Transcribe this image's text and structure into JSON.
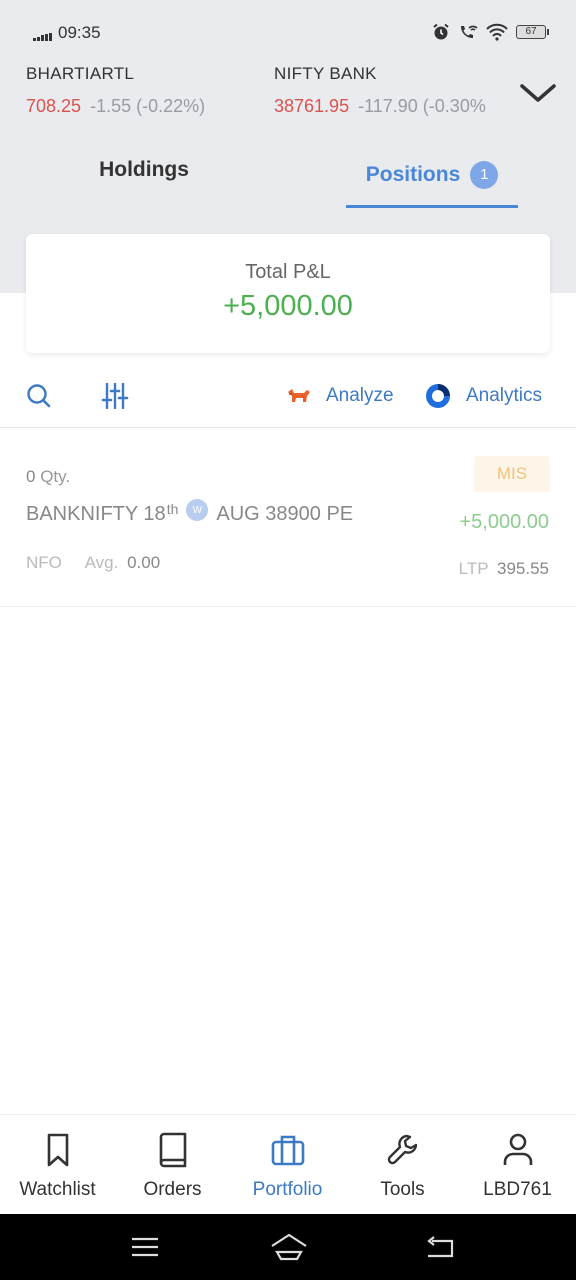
{
  "status_bar": {
    "time": "09:35",
    "battery": "67"
  },
  "tickers": [
    {
      "name": "BHARTIARTL",
      "price": "708.25",
      "change": "-1.55 (-0.22%)"
    },
    {
      "name": "NIFTY BANK",
      "price": "38761.95",
      "change": "-117.90 (-0.30%"
    }
  ],
  "tabs": {
    "holdings": "Holdings",
    "positions": "Positions",
    "positions_count": "1"
  },
  "pnl": {
    "label": "Total P&L",
    "value": "+5,000.00"
  },
  "toolbar": {
    "analyze": "Analyze",
    "analytics": "Analytics"
  },
  "position": {
    "qty_num": "0",
    "qty_label": "Qty.",
    "product": "MIS",
    "symbol_a": "BANKNIFTY 18",
    "symbol_sup": "th",
    "weekly": "W",
    "symbol_b": "AUG 38900 PE",
    "pnl": "+5,000.00",
    "exchange": "NFO",
    "avg_label": "Avg.",
    "avg_value": "0.00",
    "ltp_label": "LTP",
    "ltp_value": "395.55"
  },
  "bottom_nav": [
    {
      "label": "Watchlist",
      "icon": "bookmark-icon"
    },
    {
      "label": "Orders",
      "icon": "book-icon"
    },
    {
      "label": "Portfolio",
      "icon": "briefcase-icon"
    },
    {
      "label": "Tools",
      "icon": "wrench-icon"
    },
    {
      "label": "LBD761",
      "icon": "user-icon"
    }
  ],
  "colors": {
    "accent": "#4a87d6",
    "profit": "#4caf50",
    "loss": "#d9534f",
    "mis": "#f0c27a"
  }
}
